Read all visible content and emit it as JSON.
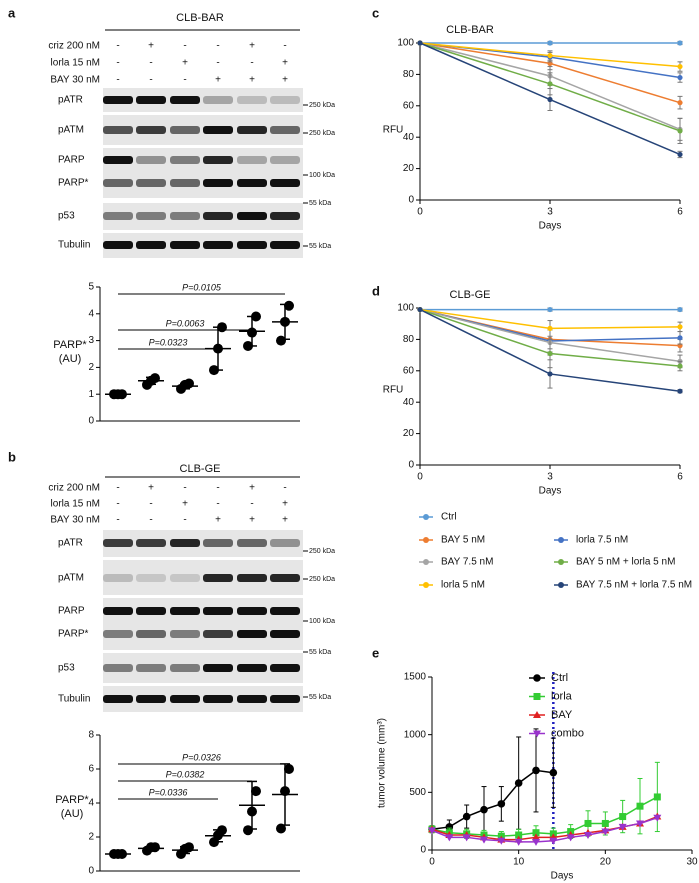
{
  "panels": [
    "a",
    "b",
    "c",
    "d",
    "e"
  ],
  "blots": [
    {
      "title": "CLB-BAR",
      "conditions": [
        {
          "label": "criz 200 nM",
          "signs": [
            "-",
            "+",
            "-",
            "-",
            "+",
            "-"
          ]
        },
        {
          "label": "lorla 15 nM",
          "signs": [
            "-",
            "-",
            "+",
            "-",
            "-",
            "+"
          ]
        },
        {
          "label": "BAY 30 nM",
          "signs": [
            "-",
            "-",
            "-",
            "+",
            "+",
            "+"
          ]
        }
      ],
      "bands": [
        "pATR",
        "pATM",
        "PARP",
        "PARP*",
        "p53",
        "Tubulin"
      ],
      "markers": [
        "250 kDa",
        "250 kDa",
        "100 kDa",
        "55 kDa",
        "55 kDa"
      ]
    },
    {
      "title": "CLB-GE",
      "conditions": [
        {
          "label": "criz 200 nM",
          "signs": [
            "-",
            "+",
            "-",
            "-",
            "+",
            "-"
          ]
        },
        {
          "label": "lorla 15 nM",
          "signs": [
            "-",
            "-",
            "+",
            "-",
            "-",
            "+"
          ]
        },
        {
          "label": "BAY 30 nM",
          "signs": [
            "-",
            "-",
            "-",
            "+",
            "+",
            "+"
          ]
        }
      ],
      "bands": [
        "pATR",
        "pATM",
        "PARP",
        "PARP*",
        "p53",
        "Tubulin"
      ],
      "markers": [
        "250 kDa",
        "250 kDa",
        "100 kDa",
        "55 kDa",
        "55 kDa"
      ]
    }
  ],
  "chart_data": [
    {
      "type": "dot",
      "ylabel": [
        "PARP*",
        "(AU)"
      ],
      "categories": [
        null,
        null,
        null,
        null,
        null,
        null
      ],
      "points": [
        [
          1,
          1,
          1
        ],
        [
          1.35,
          1.5,
          1.6
        ],
        [
          1.2,
          1.35,
          1.4
        ],
        [
          1.9,
          2.7,
          3.5
        ],
        [
          2.8,
          3.3,
          3.9
        ],
        [
          3.0,
          3.7,
          4.3
        ]
      ],
      "means": [
        1,
        1.5,
        1.3,
        2.7,
        3.35,
        3.7
      ],
      "sds": [
        0,
        0.13,
        0.1,
        0.8,
        0.55,
        0.65
      ],
      "ylim": [
        0,
        5
      ],
      "yticks": [
        0,
        1,
        2,
        3,
        4,
        5
      ],
      "annotations": [
        "P=0.0105",
        "P=0.0063",
        "P=0.0323"
      ],
      "color": "#000000"
    },
    {
      "type": "dot",
      "ylabel": [
        "PARP*",
        "(AU)"
      ],
      "categories": [
        null,
        null,
        null,
        null,
        null,
        null
      ],
      "points": [
        [
          1,
          1,
          1
        ],
        [
          1.2,
          1.4,
          1.4
        ],
        [
          1.0,
          1.3,
          1.4
        ],
        [
          1.7,
          2.1,
          2.4
        ],
        [
          2.4,
          3.5,
          4.7
        ],
        [
          2.5,
          4.7,
          6.0
        ]
      ],
      "means": [
        1,
        1.33,
        1.23,
        2.07,
        3.87,
        4.5
      ],
      "sds": [
        0,
        0.12,
        0.2,
        0.35,
        1.4,
        1.8
      ],
      "ylim": [
        0,
        8
      ],
      "yticks": [
        0,
        2,
        4,
        6,
        8
      ],
      "annotations": [
        "P=0.0326",
        "P=0.0382",
        "P=0.0336"
      ],
      "color": "#000000"
    },
    {
      "type": "line",
      "title": "CLB-BAR",
      "xlabel": "Days",
      "ylabel": "RFU",
      "x": [
        0,
        3,
        6
      ],
      "xlim": [
        0,
        6
      ],
      "xticks": [
        0,
        3,
        6
      ],
      "ylim": [
        0,
        100
      ],
      "yticks": [
        0,
        20,
        40,
        60,
        80,
        100
      ],
      "series": [
        {
          "color": "#5b9bd5",
          "values": [
            100,
            100,
            100
          ],
          "errors": [
            0,
            1,
            1
          ]
        },
        {
          "color": "#ed7d31",
          "values": [
            100,
            87,
            62
          ],
          "errors": [
            0,
            4,
            4
          ]
        },
        {
          "color": "#4472c4",
          "values": [
            100,
            91,
            78
          ],
          "errors": [
            0,
            3,
            3
          ]
        },
        {
          "color": "#a5a5a5",
          "values": [
            100,
            79,
            45
          ],
          "errors": [
            0,
            6,
            7
          ]
        },
        {
          "color": "#70ad47",
          "values": [
            100,
            74,
            44
          ],
          "errors": [
            0,
            7,
            8
          ]
        },
        {
          "color": "#ffc000",
          "values": [
            100,
            92,
            85
          ],
          "errors": [
            0,
            3,
            3
          ]
        },
        {
          "color": "#264478",
          "values": [
            100,
            64,
            29
          ],
          "errors": [
            0,
            7,
            2
          ]
        }
      ]
    },
    {
      "type": "line",
      "title": "CLB-GE",
      "xlabel": "Days",
      "ylabel": "RFU",
      "x": [
        0,
        3,
        6
      ],
      "xlim": [
        0,
        6
      ],
      "xticks": [
        0,
        3,
        6
      ],
      "ylim": [
        0,
        100
      ],
      "yticks": [
        0,
        20,
        40,
        60,
        80,
        100
      ],
      "legend": "bottom",
      "series": [
        {
          "name": "Ctrl",
          "color": "#5b9bd5",
          "values": [
            99,
            99,
            99
          ],
          "errors": [
            0,
            1,
            1
          ]
        },
        {
          "name": "BAY 5 nM",
          "color": "#ed7d31",
          "values": [
            99,
            80,
            76
          ],
          "errors": [
            0,
            6,
            4
          ]
        },
        {
          "name": "lorla 7.5 nM",
          "color": "#4472c4",
          "values": [
            99,
            79,
            81
          ],
          "errors": [
            0,
            7,
            4
          ]
        },
        {
          "name": "BAY 7.5 nM",
          "color": "#a5a5a5",
          "values": [
            99,
            78,
            66
          ],
          "errors": [
            0,
            8,
            4
          ]
        },
        {
          "name": "BAY 5 nM + lorla 5 nM",
          "color": "#70ad47",
          "values": [
            99,
            71,
            63
          ],
          "errors": [
            0,
            9,
            3
          ]
        },
        {
          "name": "lorla 5 nM",
          "color": "#ffc000",
          "values": [
            99,
            87,
            88
          ],
          "errors": [
            0,
            5,
            3
          ]
        },
        {
          "name": "BAY 7.5 nM + lorla 7.5 nM",
          "color": "#264478",
          "values": [
            99,
            58,
            47
          ],
          "errors": [
            0,
            9,
            1
          ]
        }
      ]
    },
    {
      "type": "line",
      "xlabel": "Days",
      "ylabel": "tumor volume (mm³)",
      "xlim": [
        0,
        30
      ],
      "xticks": [
        0,
        10,
        20,
        30
      ],
      "ylim": [
        0,
        1500
      ],
      "yticks": [
        0,
        500,
        1000,
        1500
      ],
      "legend": "upper right",
      "vline": 14,
      "vline_color": "#1f1fbf",
      "series": [
        {
          "name": "Ctrl",
          "color": "#000000",
          "marker": "circle",
          "x": [
            0,
            2,
            4,
            6,
            8,
            10,
            12,
            14
          ],
          "values": [
            180,
            200,
            290,
            350,
            400,
            580,
            690,
            670
          ],
          "errors": [
            30,
            60,
            100,
            200,
            150,
            400,
            360,
            300
          ]
        },
        {
          "name": "lorla",
          "color": "#33cc33",
          "marker": "square",
          "x": [
            0,
            2,
            4,
            6,
            8,
            10,
            12,
            14,
            16,
            18,
            20,
            22,
            24,
            26
          ],
          "values": [
            180,
            150,
            140,
            130,
            120,
            130,
            150,
            140,
            160,
            230,
            230,
            290,
            380,
            460
          ],
          "errors": [
            30,
            40,
            40,
            40,
            40,
            50,
            60,
            50,
            60,
            110,
            100,
            140,
            240,
            300
          ]
        },
        {
          "name": "BAY",
          "color": "#e02020",
          "marker": "triangle",
          "x": [
            0,
            2,
            4,
            6,
            8,
            10,
            12,
            14,
            16,
            18,
            20,
            22,
            24,
            26
          ],
          "values": [
            180,
            130,
            130,
            110,
            90,
            90,
            110,
            110,
            130,
            150,
            170,
            200,
            230,
            290
          ]
        },
        {
          "name": "combo",
          "color": "#9933cc",
          "marker": "triangle-down",
          "x": [
            0,
            2,
            4,
            6,
            8,
            10,
            12,
            14,
            16,
            18,
            20,
            22,
            24,
            26
          ],
          "values": [
            170,
            110,
            110,
            90,
            80,
            70,
            70,
            80,
            110,
            130,
            160,
            200,
            230,
            280
          ]
        }
      ]
    }
  ]
}
